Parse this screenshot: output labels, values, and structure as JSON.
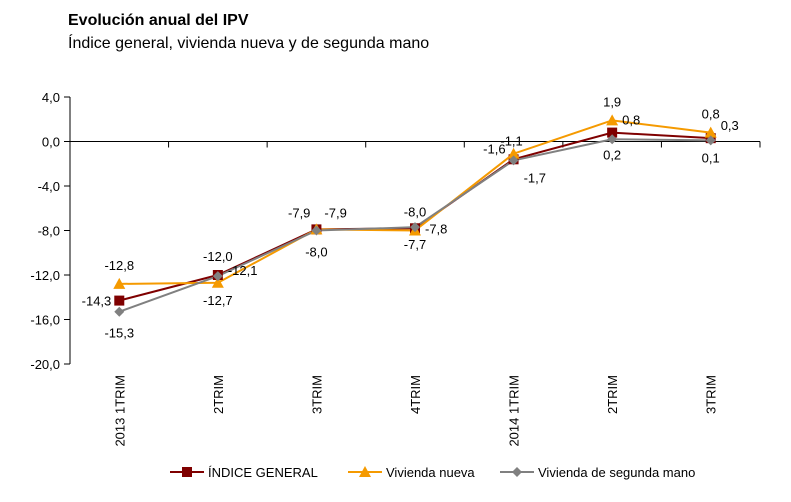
{
  "chart_data": {
    "type": "line",
    "title": "Evolución anual del IPV",
    "subtitle": "Índice general, vivienda nueva y de segunda mano",
    "categories": [
      "2013 1TRIM",
      "2TRIM",
      "3TRIM",
      "4TRIM",
      "2014 1TRIM",
      "2TRIM",
      "3TRIM"
    ],
    "ylim": [
      -20,
      4
    ],
    "yticks": [
      4,
      0,
      -4,
      -8,
      -12,
      -16,
      -20
    ],
    "ytick_labels": [
      "4,0",
      "0,0",
      "-4,0",
      "-8,0",
      "-12,0",
      "-16,0",
      "-20,0"
    ],
    "grid": false,
    "legend": "bottom",
    "series": [
      {
        "name": "ÍNDICE GENERAL",
        "color": "#7f0000",
        "marker": "square",
        "values": [
          -14.3,
          -12.0,
          -7.9,
          -7.8,
          -1.6,
          0.8,
          0.3
        ],
        "labels": [
          "-14,3",
          "-12,0",
          "-7,9",
          "-7,8",
          "-1,6",
          "0,8",
          "0,3"
        ]
      },
      {
        "name": "Vivienda nueva",
        "color": "#f59a00",
        "marker": "triangle",
        "values": [
          -12.8,
          -12.7,
          -7.9,
          -8.0,
          -1.1,
          1.9,
          0.8
        ],
        "labels": [
          "-12,8",
          "-12,7",
          "-7,9",
          "-8,0",
          "-1,1",
          "1,9",
          "0,8"
        ]
      },
      {
        "name": "Vivienda de segunda mano",
        "color": "#808080",
        "marker": "diamond",
        "values": [
          -15.3,
          -12.1,
          -8.0,
          -7.7,
          -1.7,
          0.2,
          0.1
        ],
        "labels": [
          "-15,3",
          "-12,1",
          "-8,0",
          "-7,7",
          "-1,7",
          "0,2",
          "0,1"
        ]
      }
    ]
  }
}
